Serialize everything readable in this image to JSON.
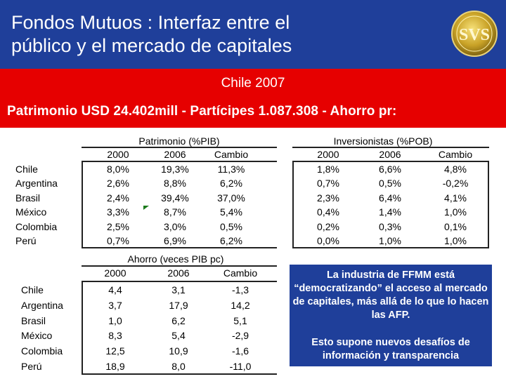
{
  "slide": {
    "title_line1": "Fondos Mutuos : Interfaz entre el",
    "title_line2": "público y el mercado de capitales",
    "subtitle": "Chile 2007",
    "stats": "Patrimonio  USD 24.402mill - Partícipes 1.087.308 - Ahorro pr:",
    "logo_text": "SVS",
    "colors": {
      "header": "#1f3f9a",
      "band": "#e60000",
      "callout": "#1f3f9a"
    }
  },
  "table_patrimonio": {
    "title": "Patrimonio (%PIB)",
    "headers": [
      "2000",
      "2006",
      "Cambio"
    ],
    "rows": [
      {
        "country": "Chile",
        "v": [
          "8,0%",
          "19,3%",
          "11,3%"
        ]
      },
      {
        "country": "Argentina",
        "v": [
          "2,6%",
          "8,8%",
          "6,2%"
        ]
      },
      {
        "country": "Brasil",
        "v": [
          "2,4%",
          "39,4%",
          "37,0%"
        ]
      },
      {
        "country": "México",
        "v": [
          "3,3%",
          "8,7%",
          "5,4%"
        ]
      },
      {
        "country": "Colombia",
        "v": [
          "2,5%",
          "3,0%",
          "0,5%"
        ]
      },
      {
        "country": "Perú",
        "v": [
          "0,7%",
          "6,9%",
          "6,2%"
        ]
      }
    ]
  },
  "table_inversionistas": {
    "title": "Inversionistas (%POB)",
    "headers": [
      "2000",
      "2006",
      "Cambio"
    ],
    "rows": [
      {
        "v": [
          "1,8%",
          "6,6%",
          "4,8%"
        ]
      },
      {
        "v": [
          "0,7%",
          "0,5%",
          "-0,2%"
        ]
      },
      {
        "v": [
          "2,3%",
          "6,4%",
          "4,1%"
        ]
      },
      {
        "v": [
          "0,4%",
          "1,4%",
          "1,0%"
        ]
      },
      {
        "v": [
          "0,2%",
          "0,3%",
          "0,1%"
        ]
      },
      {
        "v": [
          "0,0%",
          "1,0%",
          "1,0%"
        ]
      }
    ]
  },
  "table_ahorro": {
    "title": "Ahorro (veces PIB pc)",
    "headers": [
      "2000",
      "2006",
      "Cambio"
    ],
    "rows": [
      {
        "country": "Chile",
        "v": [
          "4,4",
          "3,1",
          "-1,3"
        ]
      },
      {
        "country": "Argentina",
        "v": [
          "3,7",
          "17,9",
          "14,2"
        ]
      },
      {
        "country": "Brasil",
        "v": [
          "1,0",
          "6,2",
          "5,1"
        ]
      },
      {
        "country": "México",
        "v": [
          "8,3",
          "5,4",
          "-2,9"
        ]
      },
      {
        "country": "Colombia",
        "v": [
          "12,5",
          "10,9",
          "-1,6"
        ]
      },
      {
        "country": "Perú",
        "v": [
          "18,9",
          "8,0",
          "-11,0"
        ]
      }
    ]
  },
  "callout": {
    "text1": "La industria de FFMM está “democratizando” el acceso al mercado de capitales, más allá de lo que lo hacen las AFP.",
    "text2": "Esto supone nuevos desafíos de información y transparencia"
  }
}
